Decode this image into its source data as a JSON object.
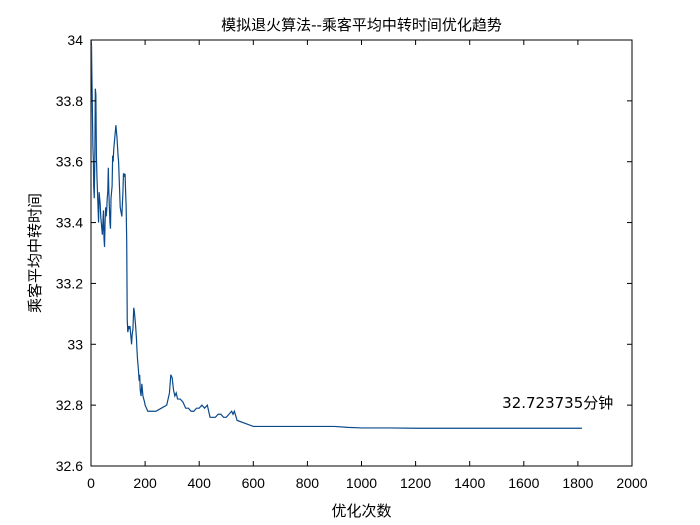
{
  "chart_data": {
    "type": "line",
    "title": "模拟退火算法--乘客平均中转时间优化趋势",
    "xlabel": "优化次数",
    "ylabel": "乘客平均中转时间",
    "xlim": [
      0,
      2000
    ],
    "ylim": [
      32.6,
      34
    ],
    "xticks": [
      0,
      200,
      400,
      600,
      800,
      1000,
      1200,
      1400,
      1600,
      1800,
      2000
    ],
    "yticks": [
      32.6,
      32.8,
      33,
      33.2,
      33.4,
      33.6,
      33.8,
      34
    ],
    "grid": false,
    "line_color": "#0a4a8c",
    "annotation": {
      "text": "32.723735分钟",
      "x": 1520,
      "y": 32.79
    },
    "series": [
      {
        "x": [
          0,
          2,
          3,
          5,
          7,
          9,
          10,
          12,
          14,
          16,
          18,
          20,
          22,
          24,
          26,
          28,
          30,
          32,
          34,
          36,
          38,
          40,
          42,
          44,
          46,
          48,
          50,
          52,
          54,
          56,
          58,
          60,
          62,
          64,
          66,
          68,
          70,
          72,
          74,
          76,
          78,
          80,
          82,
          84,
          86,
          88,
          90,
          92,
          94,
          96,
          98,
          100,
          102,
          104,
          106,
          108,
          110,
          112,
          114,
          116,
          118,
          120,
          122,
          124,
          126,
          128,
          130,
          132,
          134,
          136,
          138,
          140,
          142,
          144,
          146,
          148,
          150,
          152,
          155,
          158,
          160,
          163,
          165,
          168,
          170,
          172,
          175,
          178,
          180,
          182,
          185,
          188,
          190,
          192,
          195,
          198,
          200,
          205,
          210,
          220,
          240,
          260,
          280,
          290,
          295,
          300,
          305,
          310,
          315,
          320,
          330,
          340,
          350,
          360,
          370,
          380,
          390,
          400,
          410,
          420,
          430,
          440,
          450,
          460,
          470,
          480,
          490,
          500,
          510,
          520,
          525,
          530,
          540,
          600,
          700,
          800,
          900,
          950,
          1000,
          1050,
          1100,
          1200,
          1300,
          1400,
          1500,
          1600,
          1700,
          1800,
          1815
        ],
        "y": [
          34.0,
          33.98,
          33.9,
          33.78,
          33.65,
          33.6,
          33.52,
          33.48,
          33.6,
          33.84,
          33.82,
          33.62,
          33.55,
          33.5,
          33.45,
          33.4,
          33.5,
          33.48,
          33.46,
          33.42,
          33.4,
          33.38,
          33.36,
          33.4,
          33.44,
          33.35,
          33.32,
          33.4,
          33.45,
          33.42,
          33.44,
          33.48,
          33.5,
          33.58,
          33.5,
          33.45,
          33.4,
          33.38,
          33.48,
          33.5,
          33.52,
          33.62,
          33.6,
          33.64,
          33.66,
          33.68,
          33.7,
          33.72,
          33.7,
          33.68,
          33.65,
          33.62,
          33.6,
          33.55,
          33.5,
          33.45,
          33.44,
          33.43,
          33.42,
          33.46,
          33.5,
          33.56,
          33.56,
          33.55,
          33.56,
          33.5,
          33.45,
          33.34,
          33.08,
          33.04,
          33.05,
          33.06,
          33.05,
          33.06,
          33.04,
          33.02,
          33.0,
          33.03,
          33.05,
          33.12,
          33.11,
          33.08,
          33.06,
          33.02,
          32.98,
          32.95,
          32.92,
          32.88,
          32.9,
          32.85,
          32.83,
          32.87,
          32.85,
          32.83,
          32.82,
          32.81,
          32.8,
          32.79,
          32.78,
          32.78,
          32.78,
          32.79,
          32.8,
          32.84,
          32.9,
          32.89,
          32.85,
          32.83,
          32.84,
          32.82,
          32.82,
          32.81,
          32.79,
          32.79,
          32.78,
          32.78,
          32.79,
          32.79,
          32.8,
          32.79,
          32.8,
          32.76,
          32.76,
          32.76,
          32.77,
          32.77,
          32.76,
          32.76,
          32.77,
          32.78,
          32.77,
          32.78,
          32.75,
          32.73,
          32.73,
          32.73,
          32.73,
          32.727,
          32.725,
          32.725,
          32.725,
          32.724,
          32.724,
          32.724,
          32.724,
          32.724,
          32.724,
          32.724,
          32.724
        ]
      }
    ]
  }
}
